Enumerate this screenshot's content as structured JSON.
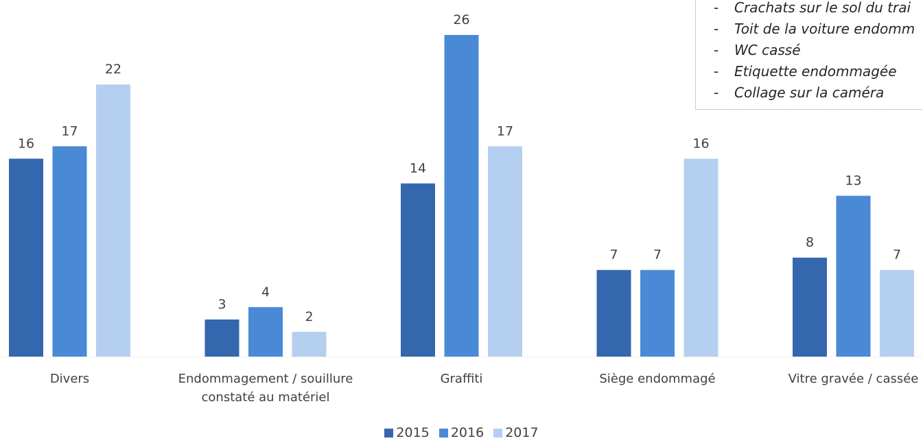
{
  "chart_data": {
    "type": "bar",
    "categories": [
      "Divers",
      "Endommagement / souillure constaté au matériel",
      "Graffiti",
      "Siège endommagé",
      "Vitre gravée / cassée"
    ],
    "category_lines": [
      [
        "Divers"
      ],
      [
        "Endommagement / souillure",
        "constaté au matériel"
      ],
      [
        "Graffiti"
      ],
      [
        "Siège endommagé"
      ],
      [
        "Vitre gravée / cassée"
      ]
    ],
    "series": [
      {
        "name": "2015",
        "color": "#3467ad",
        "values": [
          16,
          3,
          14,
          7,
          8
        ]
      },
      {
        "name": "2016",
        "color": "#4a89d6",
        "values": [
          17,
          4,
          26,
          7,
          13
        ]
      },
      {
        "name": "2017",
        "color": "#b5cff0",
        "values": [
          22,
          2,
          17,
          16,
          7
        ]
      }
    ],
    "data_labels": true,
    "gridlines": false,
    "legend_position": "bottom",
    "ylim": [
      0,
      26
    ]
  },
  "annotation": {
    "items": [
      "Crachats sur le sol du trai",
      "Toit de la voiture endomm",
      "WC cassé",
      "Etiquette endommagée",
      "Collage sur la caméra"
    ],
    "bullet": "-"
  }
}
